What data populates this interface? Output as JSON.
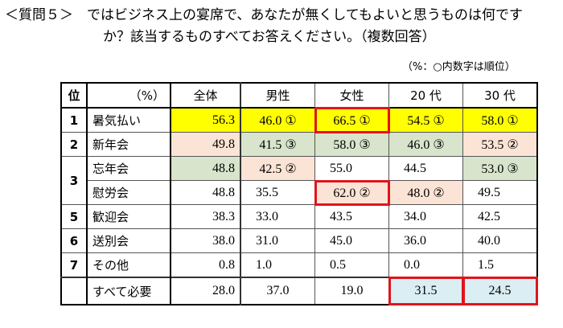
{
  "title_line1": "＜質問５＞　ではビジネス上の宴席で、あなたが無くしてもよいと思うものは何です",
  "title_line2": "か？該当するものすべてお答えください。（複数回答）",
  "note": "（%：○内数字は順位）",
  "header": {
    "rank": "位",
    "unit": "（%）",
    "cols": [
      "全体",
      "男性",
      "女性",
      "20 代",
      "30 代"
    ]
  },
  "rows": [
    {
      "rank": "1",
      "label": "暑気払い",
      "values": [
        "56.3",
        "46.0 ①",
        "66.5 ①",
        "54.5 ①",
        "58.0 ①"
      ]
    },
    {
      "rank": "2",
      "label": "新年会",
      "values": [
        "49.8",
        "41.5 ③",
        "58.0 ③",
        "46.0 ③",
        "53.5 ②"
      ]
    },
    {
      "rank": "3",
      "label": "忘年会",
      "values": [
        "48.8",
        "42.5 ②",
        "55.0",
        "44.5",
        "53.0 ③"
      ]
    },
    {
      "rank": "",
      "label": "慰労会",
      "values": [
        "48.8",
        "35.5",
        "62.0 ②",
        "48.0 ②",
        "49.5"
      ]
    },
    {
      "rank": "5",
      "label": "歓迎会",
      "values": [
        "38.3",
        "33.0",
        "43.5",
        "34.0",
        "42.5"
      ]
    },
    {
      "rank": "6",
      "label": "送別会",
      "values": [
        "38.0",
        "31.0",
        "45.0",
        "36.0",
        "40.0"
      ]
    },
    {
      "rank": "7",
      "label": "その他",
      "values": [
        "0.8",
        "1.0",
        "0.5",
        "0.0",
        "1.5"
      ]
    },
    {
      "rank": "",
      "label": "すべて必要",
      "values": [
        "28.0",
        "37.0",
        "19.0",
        "31.5",
        "24.5"
      ]
    }
  ],
  "colors": {
    "top1": "#ffff00",
    "top2": "#fbe4d5",
    "top3": "#d8e4cb",
    "highlight": "#daeef3",
    "border": "#e0141c"
  }
}
